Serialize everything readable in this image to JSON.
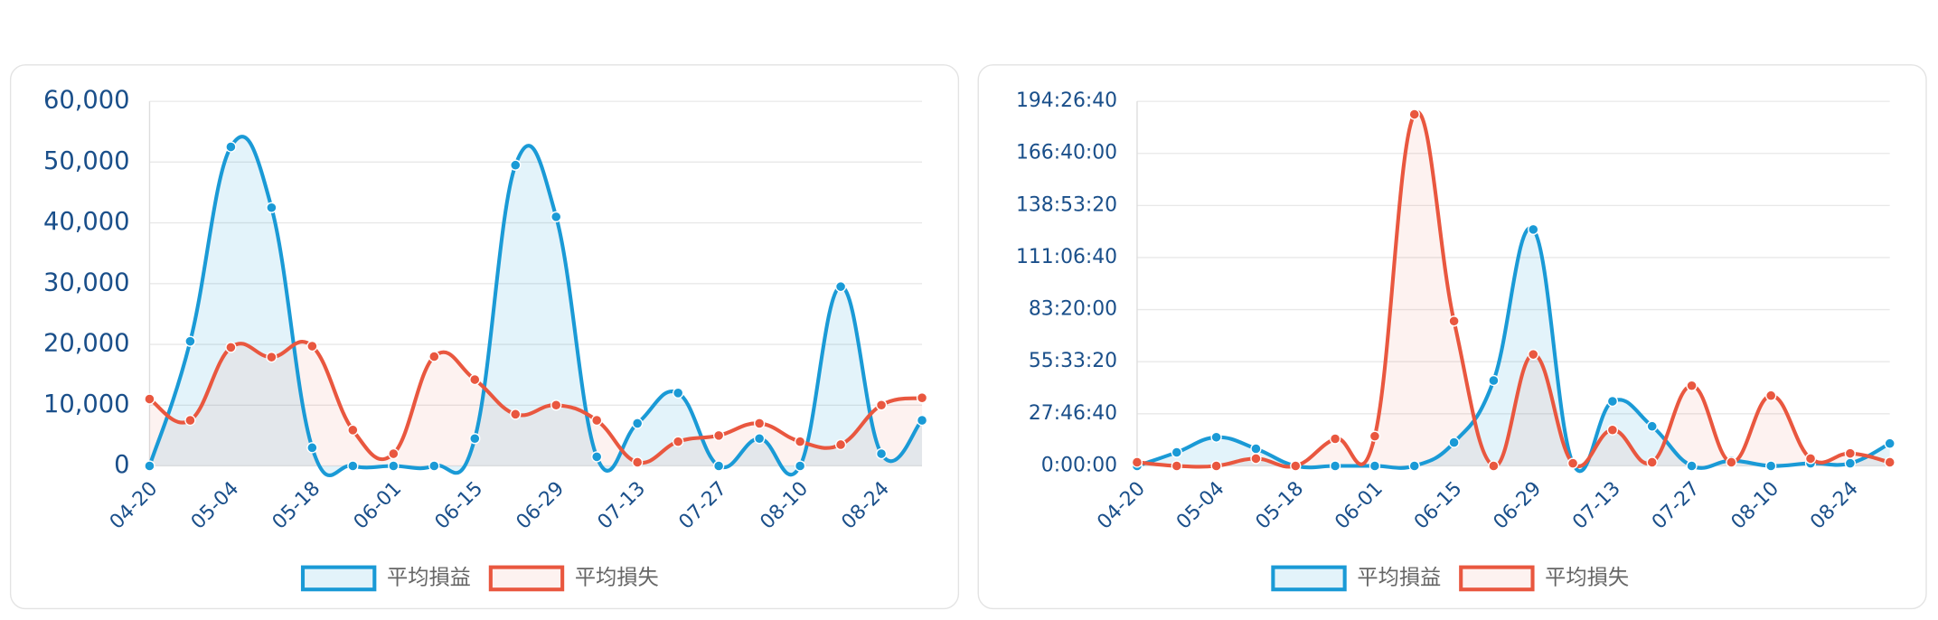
{
  "chart_data": [
    {
      "type": "area",
      "categories": [
        "04-20",
        null,
        "05-04",
        null,
        "05-18",
        null,
        "06-01",
        null,
        "06-15",
        null,
        "06-29",
        null,
        "07-13",
        null,
        "07-27",
        null,
        "08-10",
        null,
        "08-24",
        null
      ],
      "ylim": [
        0,
        60000
      ],
      "yticks": [
        0,
        {
          "value": 10000,
          "label": "10,000"
        },
        {
          "value": 20000,
          "label": "20,000"
        },
        {
          "value": 30000,
          "label": "30,000"
        },
        {
          "value": 40000,
          "label": "40,000"
        },
        {
          "value": 50000,
          "label": "50,000"
        },
        {
          "value": 60000,
          "label": "60,000"
        }
      ],
      "grid": true,
      "legend": "bottom",
      "series": [
        {
          "name": "平均損益",
          "color": "#1a9ad6",
          "values": [
            0,
            20500,
            52500,
            42500,
            3000,
            0,
            0,
            0,
            4500,
            49500,
            41000,
            1500,
            7000,
            12000,
            0,
            4500,
            0,
            29500,
            2000,
            7500
          ]
        },
        {
          "name": "平均損失",
          "color": "#e9573f",
          "values": [
            11000,
            7500,
            19500,
            17900,
            19700,
            5900,
            2000,
            18000,
            14200,
            8500,
            10000,
            7500,
            600,
            4000,
            5000,
            7000,
            4000,
            3500,
            10000,
            11200
          ]
        }
      ]
    },
    {
      "type": "area",
      "categories": [
        "04-20",
        null,
        "05-04",
        null,
        "05-18",
        null,
        "06-01",
        null,
        "06-15",
        null,
        "06-29",
        null,
        "07-13",
        null,
        "07-27",
        null,
        "08-10",
        null,
        "08-24",
        null
      ],
      "ylim": [
        0,
        700000
      ],
      "yticks": [
        {
          "value": 0,
          "label": "0:00:00"
        },
        {
          "value": 100000,
          "label": "27:46:40"
        },
        {
          "value": 200000,
          "label": "55:33:20"
        },
        {
          "value": 300000,
          "label": "83:20:00"
        },
        {
          "value": 400000,
          "label": "111:06:40"
        },
        {
          "value": 500000,
          "label": "138:53:20"
        },
        {
          "value": 600000,
          "label": "166:40:00"
        },
        {
          "value": 700000,
          "label": "194:26:40"
        }
      ],
      "grid": true,
      "legend": "bottom",
      "series": [
        {
          "name": "平均損益",
          "color": "#1a9ad6",
          "values": [
            0,
            26000,
            55000,
            33000,
            0,
            0,
            0,
            0,
            45000,
            164000,
            454000,
            5000,
            124000,
            76000,
            0,
            10000,
            0,
            5000,
            5000,
            43000
          ]
        },
        {
          "name": "平均損失",
          "color": "#e9573f",
          "values": [
            7000,
            0,
            0,
            14000,
            0,
            52000,
            57000,
            675000,
            278000,
            0,
            214000,
            5000,
            69000,
            7000,
            154000,
            7000,
            135000,
            14000,
            24000,
            7000
          ]
        }
      ]
    }
  ]
}
